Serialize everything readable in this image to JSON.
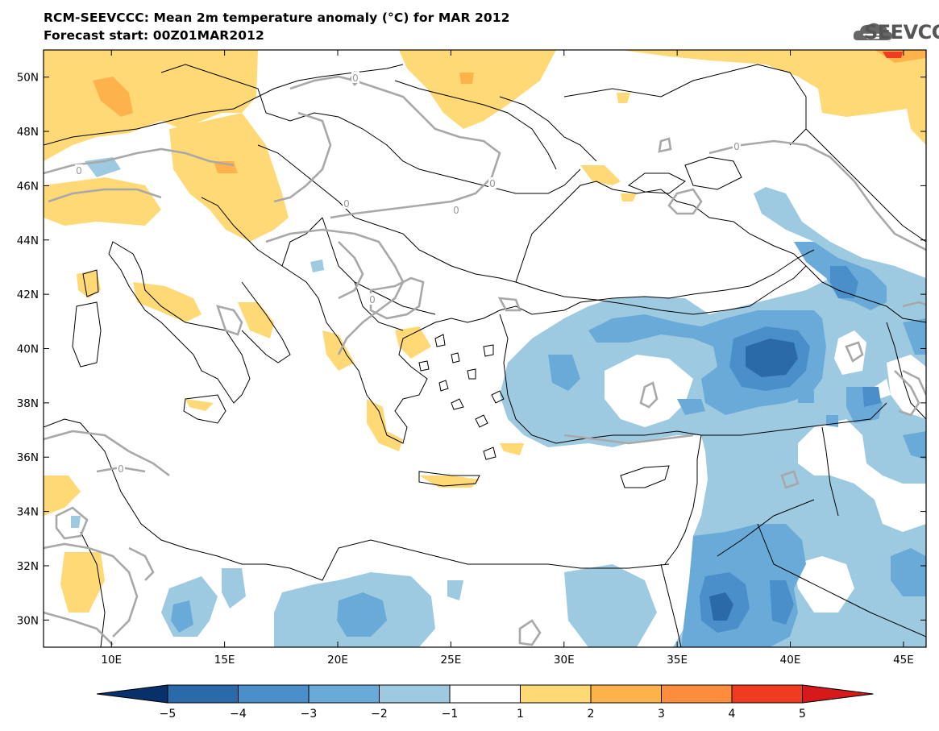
{
  "title": "RCM-SEEVCCC: Mean 2m temperature anomaly (°C) for MAR 2012",
  "subtitle": "Forecast start: 00Z01MAR2012",
  "logo": {
    "text": "SEEVCCC",
    "icon": "cloud-icon"
  },
  "map": {
    "lon_range": [
      7,
      46
    ],
    "lat_range": [
      29,
      51
    ],
    "lon_ticks": [
      {
        "value": 10,
        "label": "10E"
      },
      {
        "value": 15,
        "label": "15E"
      },
      {
        "value": 20,
        "label": "20E"
      },
      {
        "value": 25,
        "label": "25E"
      },
      {
        "value": 30,
        "label": "30E"
      },
      {
        "value": 35,
        "label": "35E"
      },
      {
        "value": 40,
        "label": "40E"
      },
      {
        "value": 45,
        "label": "45E"
      }
    ],
    "lat_ticks": [
      {
        "value": 30,
        "label": "30N"
      },
      {
        "value": 32,
        "label": "32N"
      },
      {
        "value": 34,
        "label": "34N"
      },
      {
        "value": 36,
        "label": "36N"
      },
      {
        "value": 38,
        "label": "38N"
      },
      {
        "value": 40,
        "label": "40N"
      },
      {
        "value": 42,
        "label": "42N"
      },
      {
        "value": 44,
        "label": "44N"
      },
      {
        "value": 46,
        "label": "46N"
      },
      {
        "value": 48,
        "label": "48N"
      },
      {
        "value": 50,
        "label": "50N"
      }
    ],
    "contour_label": "0"
  },
  "colorbar": {
    "labels": [
      "−5",
      "−4",
      "−3",
      "−2",
      "−1",
      "1",
      "2",
      "3",
      "4",
      "5"
    ],
    "colors": [
      "#08306b",
      "#2b6aa8",
      "#4a8fca",
      "#6aaad8",
      "#9ecae1",
      "#ffffff",
      "#fed976",
      "#feb24c",
      "#fd8d3c",
      "#f03b20",
      "#d7191c"
    ]
  }
}
